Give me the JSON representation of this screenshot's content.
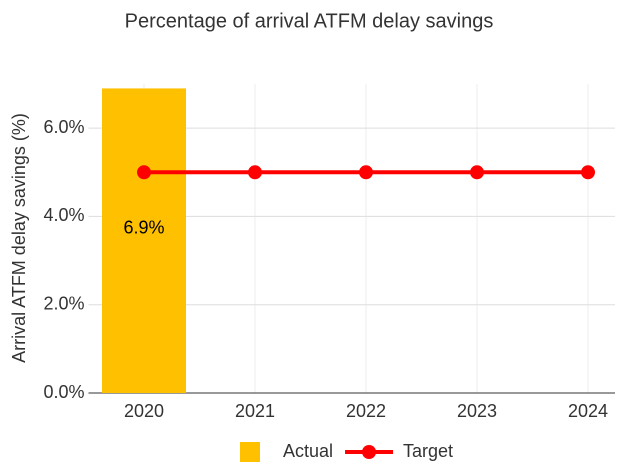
{
  "chart_data": {
    "type": "bar",
    "title": "Percentage of arrival ATFM delay savings",
    "y_label": "Arrival ATFM delay savings (%)",
    "categories": [
      "2020",
      "2021",
      "2022",
      "2023",
      "2024"
    ],
    "series": [
      {
        "name": "Actual",
        "type": "bar",
        "color": "#ffc000",
        "values": [
          6.9,
          null,
          null,
          null,
          null
        ],
        "value_labels": [
          "6.9%",
          null,
          null,
          null,
          null
        ]
      },
      {
        "name": "Target",
        "type": "line",
        "color": "#ff0000",
        "values": [
          5,
          5,
          5,
          5,
          5
        ]
      }
    ],
    "ylim": [
      0,
      7
    ],
    "yticks": [
      {
        "value": 0,
        "label": "0.0%"
      },
      {
        "value": 2,
        "label": "2.0%"
      },
      {
        "value": 4,
        "label": "4.0%"
      },
      {
        "value": 6,
        "label": "6.0%"
      }
    ],
    "grid": true,
    "legend": "bottom"
  }
}
